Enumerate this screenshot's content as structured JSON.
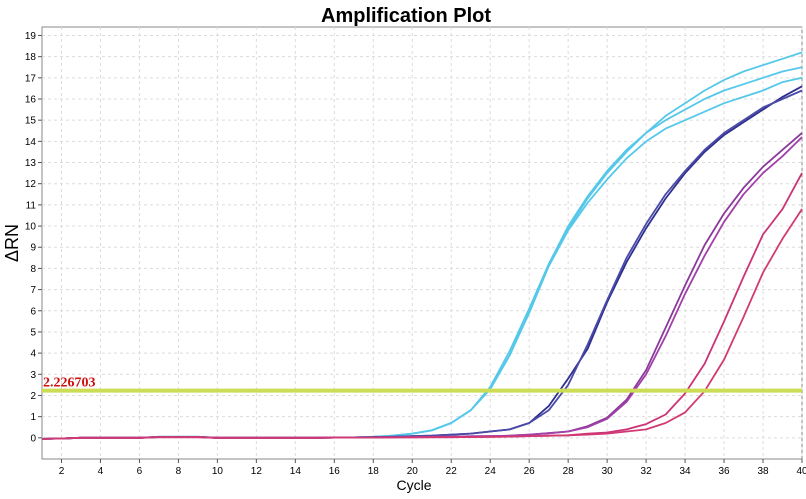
{
  "chart_data": {
    "type": "line",
    "title": "Amplification Plot",
    "xlabel": "Cycle",
    "ylabel": "ΔRN",
    "xlim": [
      1,
      40
    ],
    "ylim": [
      -1,
      19.4
    ],
    "x_ticks": [
      2,
      4,
      6,
      8,
      10,
      12,
      14,
      16,
      18,
      20,
      22,
      24,
      26,
      28,
      30,
      32,
      34,
      36,
      38,
      40
    ],
    "y_ticks": [
      0,
      1,
      2,
      3,
      4,
      5,
      6,
      7,
      8,
      9,
      10,
      11,
      12,
      13,
      14,
      15,
      16,
      17,
      18,
      19
    ],
    "grid": true,
    "legend": "none",
    "threshold": {
      "value": 2.226703,
      "label": "2.226703",
      "color": "#ccdd55",
      "label_color": "#cc1111"
    },
    "x": [
      1,
      2,
      3,
      4,
      5,
      6,
      7,
      8,
      9,
      10,
      11,
      12,
      13,
      14,
      15,
      16,
      17,
      18,
      19,
      20,
      21,
      22,
      23,
      24,
      25,
      26,
      27,
      28,
      29,
      30,
      31,
      32,
      33,
      34,
      35,
      36,
      37,
      38,
      39,
      40
    ],
    "series": [
      {
        "color": "#55c8ea",
        "width": 1.8,
        "values": [
          -0.05,
          -0.03,
          0,
          0,
          0,
          0,
          0.05,
          0.05,
          0.05,
          0,
          0,
          0,
          0,
          0,
          0,
          0.02,
          0.02,
          0.05,
          0.1,
          0.2,
          0.35,
          0.7,
          1.3,
          2.3,
          3.9,
          5.9,
          8.1,
          9.8,
          11.1,
          12.2,
          13.2,
          14.0,
          14.6,
          15.0,
          15.4,
          15.8,
          16.1,
          16.4,
          16.8,
          17.0
        ]
      },
      {
        "color": "#55c8ea",
        "width": 1.8,
        "values": [
          -0.05,
          -0.03,
          0,
          0,
          0,
          0,
          0.05,
          0.05,
          0.05,
          0,
          0,
          0,
          0,
          0,
          0,
          0.02,
          0.02,
          0.05,
          0.1,
          0.2,
          0.35,
          0.7,
          1.3,
          2.4,
          4.1,
          6.1,
          8.2,
          10.0,
          11.4,
          12.6,
          13.6,
          14.4,
          15.0,
          15.5,
          16.0,
          16.4,
          16.7,
          17.0,
          17.3,
          17.5
        ]
      },
      {
        "color": "#55c8ea",
        "width": 1.8,
        "values": [
          -0.05,
          -0.03,
          0,
          0,
          0,
          0,
          0.05,
          0.05,
          0.05,
          0,
          0,
          0,
          0,
          0,
          0,
          0.02,
          0.02,
          0.05,
          0.1,
          0.2,
          0.35,
          0.7,
          1.3,
          2.3,
          3.9,
          6.0,
          8.2,
          9.9,
          11.3,
          12.5,
          13.5,
          14.4,
          15.2,
          15.8,
          16.4,
          16.9,
          17.3,
          17.6,
          17.9,
          18.2
        ]
      },
      {
        "color": "#2f2f8f",
        "width": 1.8,
        "values": [
          -0.05,
          -0.03,
          0,
          0,
          0,
          0,
          0.04,
          0.04,
          0.04,
          0,
          0,
          0,
          0,
          0,
          0,
          0.01,
          0.02,
          0.03,
          0.05,
          0.08,
          0.1,
          0.15,
          0.2,
          0.3,
          0.4,
          0.7,
          1.5,
          2.8,
          4.2,
          6.4,
          8.3,
          9.9,
          11.3,
          12.5,
          13.5,
          14.3,
          14.9,
          15.5,
          16.1,
          16.6
        ]
      },
      {
        "color": "#4a4aa8",
        "width": 1.8,
        "values": [
          -0.05,
          -0.03,
          0,
          0,
          0,
          0,
          0.04,
          0.04,
          0.04,
          0,
          0,
          0,
          0,
          0,
          0,
          0.01,
          0.02,
          0.03,
          0.05,
          0.08,
          0.1,
          0.15,
          0.2,
          0.3,
          0.4,
          0.7,
          1.3,
          2.5,
          4.4,
          6.5,
          8.5,
          10.1,
          11.5,
          12.6,
          13.6,
          14.4,
          15.0,
          15.6,
          16.0,
          16.4
        ]
      },
      {
        "color": "#8a3a9a",
        "width": 1.8,
        "values": [
          -0.05,
          -0.03,
          0,
          0,
          0,
          0,
          0.04,
          0.04,
          0.04,
          0,
          0,
          0,
          0,
          0,
          0,
          0.01,
          0.01,
          0.02,
          0.03,
          0.04,
          0.05,
          0.06,
          0.07,
          0.08,
          0.1,
          0.15,
          0.22,
          0.3,
          0.55,
          0.95,
          1.8,
          3.2,
          5.2,
          7.2,
          9.1,
          10.6,
          11.8,
          12.8,
          13.6,
          14.4
        ]
      },
      {
        "color": "#a040a8",
        "width": 1.8,
        "values": [
          -0.05,
          -0.03,
          0,
          0,
          0,
          0,
          0.04,
          0.04,
          0.04,
          0,
          0,
          0,
          0,
          0,
          0,
          0.01,
          0.01,
          0.02,
          0.03,
          0.04,
          0.05,
          0.06,
          0.07,
          0.08,
          0.1,
          0.15,
          0.22,
          0.3,
          0.5,
          0.9,
          1.7,
          3.0,
          4.8,
          6.8,
          8.6,
          10.2,
          11.5,
          12.5,
          13.3,
          14.2
        ]
      },
      {
        "color": "#cc3377",
        "width": 1.8,
        "values": [
          -0.05,
          -0.03,
          0,
          0,
          0,
          0,
          0.03,
          0.03,
          0.03,
          0,
          0,
          0,
          0,
          0,
          0,
          0.01,
          0.01,
          0.01,
          0.02,
          0.02,
          0.03,
          0.03,
          0.04,
          0.05,
          0.06,
          0.08,
          0.1,
          0.12,
          0.2,
          0.25,
          0.4,
          0.65,
          1.1,
          2.1,
          3.5,
          5.5,
          7.6,
          9.6,
          10.8,
          12.5
        ]
      },
      {
        "color": "#d13a73",
        "width": 1.8,
        "values": [
          -0.05,
          -0.03,
          0,
          0,
          0,
          0,
          0.03,
          0.03,
          0.03,
          0,
          0,
          0,
          0,
          0,
          0,
          0.01,
          0.01,
          0.01,
          0.02,
          0.02,
          0.03,
          0.03,
          0.04,
          0.05,
          0.06,
          0.08,
          0.1,
          0.12,
          0.15,
          0.2,
          0.3,
          0.4,
          0.7,
          1.2,
          2.2,
          3.7,
          5.7,
          7.8,
          9.4,
          10.8
        ]
      }
    ]
  }
}
